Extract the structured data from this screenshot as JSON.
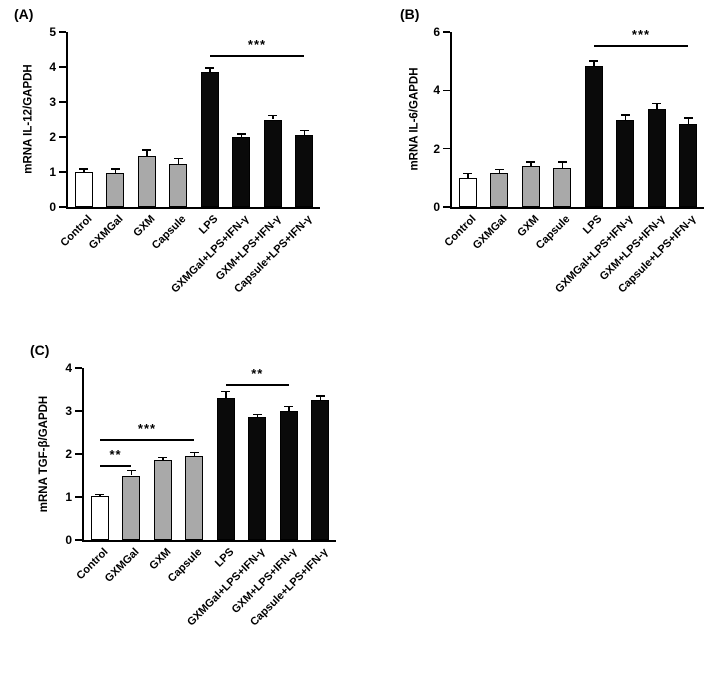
{
  "figure_background": "#ffffff",
  "colors": {
    "bar_white": "#ffffff",
    "bar_gray": "#a9a9a9",
    "bar_black": "#0a0a0a",
    "axis": "#000000"
  },
  "chart_data": [
    {
      "type": "bar",
      "panel_label": "(A)",
      "ylabel": "mRNA IL-12/GAPDH",
      "ylim": [
        0,
        5
      ],
      "yticks": [
        0,
        1,
        2,
        3,
        4,
        5
      ],
      "grid": false,
      "legend": "none",
      "categories": [
        "Control",
        "GXMGal",
        "GXM",
        "Capsule",
        "LPS",
        "GXMGal+LPS+IFN-γ",
        "GXM+LPS+IFN-γ",
        "Capsule+LPS+IFN-γ"
      ],
      "values": [
        1.0,
        0.97,
        1.45,
        1.23,
        3.85,
        2.0,
        2.5,
        2.07
      ],
      "errors": [
        0.08,
        0.12,
        0.18,
        0.15,
        0.12,
        0.08,
        0.12,
        0.12
      ],
      "bar_colors": [
        "#ffffff",
        "#a9a9a9",
        "#a9a9a9",
        "#a9a9a9",
        "#0a0a0a",
        "#0a0a0a",
        "#0a0a0a",
        "#0a0a0a"
      ],
      "significance": [
        {
          "from": 4,
          "to": 7,
          "y": 4.35,
          "label": "***"
        }
      ]
    },
    {
      "type": "bar",
      "panel_label": "(B)",
      "ylabel": "mRNA IL-6/GAPDH",
      "ylim": [
        0,
        6
      ],
      "yticks": [
        0,
        2,
        4,
        6
      ],
      "grid": false,
      "legend": "none",
      "categories": [
        "Control",
        "GXMGal",
        "GXM",
        "Capsule",
        "LPS",
        "GXMGal+LPS+IFN-γ",
        "GXM+LPS+IFN-γ",
        "Capsule+LPS+IFN-γ"
      ],
      "values": [
        1.0,
        1.18,
        1.4,
        1.35,
        4.85,
        3.0,
        3.35,
        2.85
      ],
      "errors": [
        0.15,
        0.1,
        0.15,
        0.2,
        0.15,
        0.15,
        0.2,
        0.2
      ],
      "bar_colors": [
        "#ffffff",
        "#a9a9a9",
        "#a9a9a9",
        "#a9a9a9",
        "#0a0a0a",
        "#0a0a0a",
        "#0a0a0a",
        "#0a0a0a"
      ],
      "significance": [
        {
          "from": 4,
          "to": 7,
          "y": 5.55,
          "label": "***"
        }
      ]
    },
    {
      "type": "bar",
      "panel_label": "(C)",
      "ylabel": "mRNA TGF-β/GAPDH",
      "ylim": [
        0,
        4
      ],
      "yticks": [
        0,
        1,
        2,
        3,
        4
      ],
      "grid": false,
      "legend": "none",
      "categories": [
        "Control",
        "GXMGal",
        "GXM",
        "Capsule",
        "LPS",
        "GXMGal+LPS+IFN-γ",
        "GXM+LPS+IFN-γ",
        "Capsule+LPS+IFN-γ"
      ],
      "values": [
        1.02,
        1.5,
        1.85,
        1.95,
        3.3,
        2.85,
        3.0,
        3.25
      ],
      "errors": [
        0.04,
        0.12,
        0.07,
        0.08,
        0.15,
        0.07,
        0.1,
        0.1
      ],
      "bar_colors": [
        "#ffffff",
        "#a9a9a9",
        "#a9a9a9",
        "#a9a9a9",
        "#0a0a0a",
        "#0a0a0a",
        "#0a0a0a",
        "#0a0a0a"
      ],
      "significance": [
        {
          "from": 0,
          "to": 1,
          "y": 1.75,
          "label": "**"
        },
        {
          "from": 0,
          "to": 3,
          "y": 2.35,
          "label": "***"
        },
        {
          "from": 4,
          "to": 6,
          "y": 3.62,
          "label": "**"
        }
      ]
    }
  ]
}
